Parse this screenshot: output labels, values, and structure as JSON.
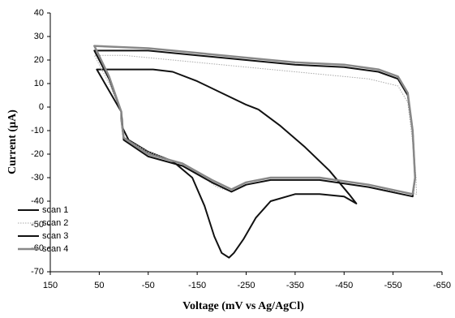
{
  "chart_data": {
    "type": "line",
    "x_label": "Voltage (mV vs Ag/AgCl)",
    "y_label": "Current (µA)",
    "xlim": [
      150,
      -650
    ],
    "xticks": [
      150,
      50,
      -50,
      -150,
      -250,
      -350,
      -450,
      -550,
      -650
    ],
    "ylim": [
      -70,
      40
    ],
    "yticks": [
      40,
      30,
      20,
      10,
      0,
      -10,
      -20,
      -30,
      -40,
      -50,
      -60,
      -70
    ],
    "legend": "lower left",
    "series": [
      {
        "name": "scan 1",
        "color": "#111111",
        "line_style": "solid",
        "line_width": 2,
        "x": [
          -275,
          -320,
          -370,
          -420,
          -460,
          -475,
          -450,
          -400,
          -350,
          -300,
          -270,
          -245,
          -225,
          -215,
          -200,
          -185,
          -165,
          -140,
          -100,
          -50,
          -10,
          2,
          5,
          30,
          55,
          0,
          -60,
          -100,
          -150,
          -200,
          -250,
          -275
        ],
        "values": [
          -1,
          -8,
          -17,
          -27,
          -37,
          -41,
          -38,
          -37,
          -37,
          -40,
          -47,
          -56,
          -62,
          -64,
          -62,
          -55,
          -42,
          -30,
          -23,
          -19,
          -14,
          -9,
          -2,
          7,
          16,
          16,
          16,
          15,
          11,
          6,
          1,
          -1
        ]
      },
      {
        "name": "scan 2",
        "color": "#aaaaaa",
        "line_style": "dotted",
        "line_width": 1,
        "x": [
          5,
          30,
          60,
          0,
          -100,
          -200,
          -300,
          -400,
          -500,
          -560,
          -580,
          -590,
          -597,
          -598,
          -560,
          -500,
          -400,
          -300,
          -250,
          -220,
          -190,
          -150,
          -100,
          -50,
          0,
          5,
          5
        ],
        "values": [
          -2,
          10,
          22,
          22,
          20,
          18,
          16,
          14,
          12,
          9,
          2,
          -15,
          -30,
          -37,
          -36,
          -34,
          -31,
          -31,
          -33,
          -36,
          -34,
          -28,
          -23,
          -19,
          -13,
          -6,
          -2
        ]
      },
      {
        "name": "scan 3",
        "color": "#111111",
        "line_style": "solid",
        "line_width": 2,
        "x": [
          5,
          30,
          60,
          -50,
          -150,
          -250,
          -350,
          -450,
          -520,
          -560,
          -580,
          -590,
          -595,
          -590,
          -500,
          -400,
          -300,
          -250,
          -220,
          -180,
          -120,
          -50,
          0,
          5,
          5
        ],
        "values": [
          -2,
          12,
          24,
          24,
          22,
          20,
          18,
          17,
          15,
          12,
          5,
          -10,
          -30,
          -38,
          -34,
          -31,
          -31,
          -33,
          -36,
          -32,
          -25,
          -21,
          -14,
          -5,
          -2
        ]
      },
      {
        "name": "scan 4",
        "color": "#888888",
        "line_style": "solid",
        "line_width": 2.5,
        "x": [
          5,
          30,
          60,
          -50,
          -150,
          -250,
          -350,
          -450,
          -520,
          -560,
          -580,
          -590,
          -595,
          -590,
          -500,
          -400,
          -300,
          -250,
          -220,
          -180,
          -120,
          -50,
          0,
          5,
          5
        ],
        "values": [
          -2,
          13,
          26,
          25,
          23,
          21,
          19,
          18,
          16,
          13,
          6,
          -10,
          -30,
          -37,
          -33,
          -30,
          -30,
          -32,
          -35,
          -31,
          -24,
          -20,
          -13,
          -5,
          -2
        ]
      }
    ]
  }
}
